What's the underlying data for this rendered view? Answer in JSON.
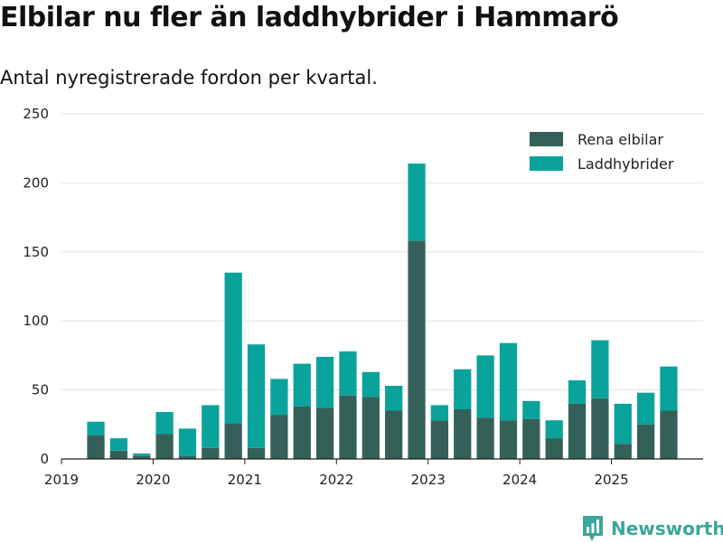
{
  "title": "Elbilar nu fler än laddhybrider i Hammarö",
  "subtitle": "Antal nyregistrerade fordon per kvartal.",
  "brand": {
    "name": "Newsworthy",
    "icon": "newsworthy-logo-icon"
  },
  "colors": {
    "rena": "#356059",
    "laddhybrider": "#0aa39b",
    "grid": "#e2e2e2",
    "axis": "#222222",
    "brand": "#3aa79a"
  },
  "chart_data": {
    "type": "bar",
    "stacked": true,
    "title": "Elbilar nu fler än laddhybrider i Hammarö",
    "subtitle": "Antal nyregistrerade fordon per kvartal.",
    "xlabel": "",
    "ylabel": "",
    "ylim": [
      0,
      250
    ],
    "yticks": [
      0,
      50,
      100,
      150,
      200,
      250
    ],
    "grid": true,
    "legend_position": "top-right",
    "categories": [
      "2019 Q2",
      "2019 Q3",
      "2019 Q4",
      "2020 Q1",
      "2020 Q2",
      "2020 Q3",
      "2020 Q4",
      "2021 Q1",
      "2021 Q2",
      "2021 Q3",
      "2021 Q4",
      "2022 Q1",
      "2022 Q2",
      "2022 Q3",
      "2022 Q4",
      "2023 Q1",
      "2023 Q2",
      "2023 Q3",
      "2023 Q4",
      "2024 Q1",
      "2024 Q2",
      "2024 Q3",
      "2024 Q4",
      "2025 Q1",
      "2025 Q2",
      "2025 Q3"
    ],
    "x_tick_labels": [
      "2019",
      "2020",
      "2021",
      "2022",
      "2023",
      "2024",
      "2025"
    ],
    "series": [
      {
        "name": "Rena elbilar",
        "color": "#356059",
        "values": [
          17,
          6,
          2,
          18,
          2,
          8,
          26,
          8,
          32,
          38,
          37,
          46,
          45,
          35,
          158,
          28,
          36,
          30,
          28,
          29,
          15,
          40,
          44,
          11,
          25,
          35
        ]
      },
      {
        "name": "Laddhybrider",
        "color": "#0aa39b",
        "values": [
          10,
          9,
          2,
          16,
          20,
          31,
          109,
          75,
          26,
          31,
          37,
          32,
          18,
          18,
          56,
          11,
          29,
          45,
          56,
          13,
          13,
          17,
          42,
          29,
          23,
          32
        ]
      }
    ]
  }
}
